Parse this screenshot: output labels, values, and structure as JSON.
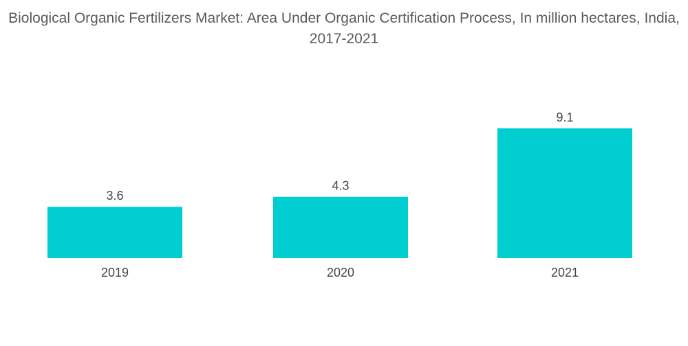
{
  "chart_data": {
    "type": "bar",
    "title": "Biological Organic Fertilizers Market: Area Under Organic Certification Process, In million hectares, India, 2017-2021",
    "categories": [
      "2019",
      "2020",
      "2021"
    ],
    "values": [
      3.6,
      4.3,
      9.1
    ],
    "value_labels": [
      "3.6",
      "4.3",
      "9.1"
    ],
    "xlabel": "",
    "ylabel": "",
    "ylim": [
      0,
      10
    ],
    "grid": false,
    "legend": "none",
    "bar_color": "#00CED1"
  }
}
